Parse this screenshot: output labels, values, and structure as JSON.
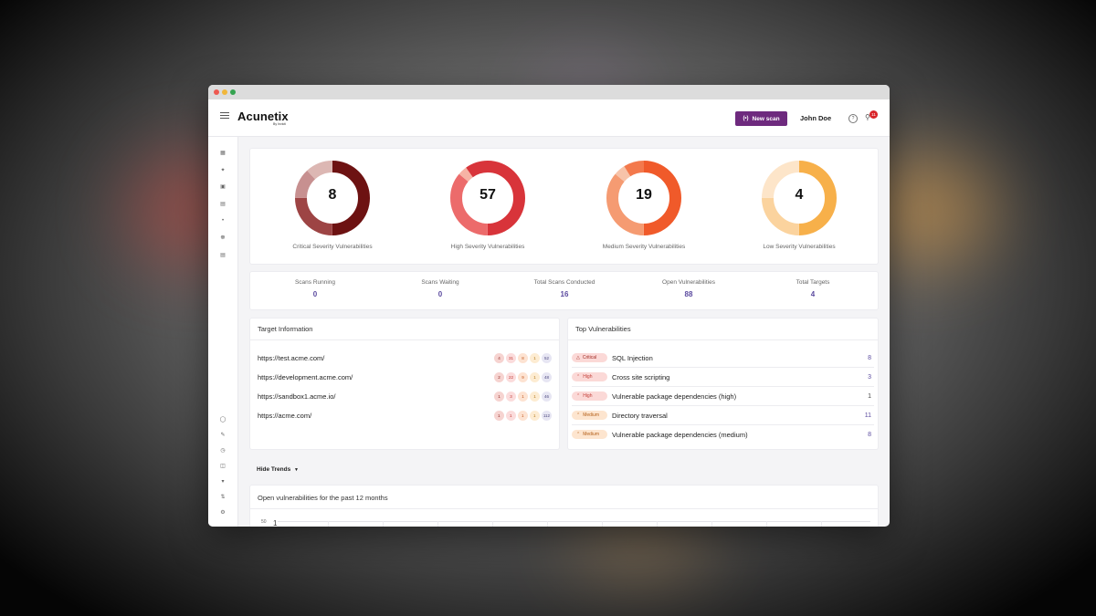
{
  "app": {
    "logo": "Acunetix",
    "logo_sub": "By Invicti"
  },
  "header": {
    "new_scan_label": "New scan",
    "user_name": "John Doe",
    "notification_count": "11"
  },
  "colors": {
    "brand_purple": "#6e2a7e",
    "critical": "#7a1414",
    "high": "#d9343a",
    "medium": "#ee6a2e",
    "low": "#f7b04a",
    "stat_value": "#5b4a9f"
  },
  "severity_donuts": [
    {
      "label": "Critical Severity Vulnerabilities",
      "count": "8",
      "segments": [
        {
          "fraction": 0.5,
          "color": "#6d1212"
        },
        {
          "fraction": 0.25,
          "color": "#9d4444"
        },
        {
          "fraction": 0.13,
          "color": "#c79090"
        },
        {
          "fraction": 0.12,
          "color": "#dcb7b3"
        }
      ]
    },
    {
      "label": "High Severity Vulnerabilities",
      "count": "57",
      "segments": [
        {
          "fraction": 0.5,
          "color": "#d8343a"
        },
        {
          "fraction": 0.36,
          "color": "#ec6b6b"
        },
        {
          "fraction": 0.04,
          "color": "#f6b3a5"
        },
        {
          "fraction": 0.1,
          "color": "#d8343a"
        }
      ]
    },
    {
      "label": "Medium Severity Vulnerabilities",
      "count": "19",
      "segments": [
        {
          "fraction": 0.5,
          "color": "#f05a2a"
        },
        {
          "fraction": 0.36,
          "color": "#f59b72"
        },
        {
          "fraction": 0.05,
          "color": "#f7c3a9"
        },
        {
          "fraction": 0.09,
          "color": "#f3794c"
        }
      ]
    },
    {
      "label": "Low Severity Vulnerabilities",
      "count": "4",
      "segments": [
        {
          "fraction": 0.5,
          "color": "#f7b04a"
        },
        {
          "fraction": 0.25,
          "color": "#fbd39e"
        },
        {
          "fraction": 0.25,
          "color": "#fde5c9"
        }
      ]
    }
  ],
  "stats": [
    {
      "label": "Scans Running",
      "value": "0"
    },
    {
      "label": "Scans Waiting",
      "value": "0"
    },
    {
      "label": "Total Scans Conducted",
      "value": "16"
    },
    {
      "label": "Open Vulnerabilities",
      "value": "88"
    },
    {
      "label": "Total Targets",
      "value": "4"
    }
  ],
  "target_information": {
    "title": "Target Information",
    "rows": [
      {
        "url": "https://test.acme.com/",
        "counts": [
          "4",
          "31",
          "8",
          "1",
          "52"
        ]
      },
      {
        "url": "https://development.acme.com/",
        "counts": [
          "2",
          "22",
          "9",
          "1",
          "48"
        ]
      },
      {
        "url": "https://sandbox1.acme.io/",
        "counts": [
          "1",
          "3",
          "1",
          "1",
          "46"
        ]
      },
      {
        "url": "https://acme.com/",
        "counts": [
          "1",
          "1",
          "1",
          "1",
          "112"
        ]
      }
    ]
  },
  "top_vulnerabilities": {
    "title": "Top Vulnerabilities",
    "rows": [
      {
        "severity": "Critical",
        "name": "SQL Injection",
        "count": "8"
      },
      {
        "severity": "High",
        "name": "Cross site scripting",
        "count": "3"
      },
      {
        "severity": "High",
        "name": "Vulnerable package dependencies (high)",
        "count": "1"
      },
      {
        "severity": "Medium",
        "name": "Directory traversal",
        "count": "11"
      },
      {
        "severity": "Medium",
        "name": "Vulnerable package dependencies (medium)",
        "count": "8"
      }
    ]
  },
  "trends": {
    "toggle_label": "Hide Trends",
    "title": "Open vulnerabilities for the past 12 months",
    "y_tick": "50",
    "y_one": "1"
  },
  "sidebar_icons": [
    "dashboard-icon",
    "targets-icon",
    "scans-icon",
    "vulnerabilities-icon",
    "monitor-icon",
    "bug-icon",
    "reports-icon",
    "shield-icon",
    "edit-icon",
    "clock-icon",
    "database-icon",
    "filter-icon",
    "sync-icon",
    "settings-icon"
  ]
}
